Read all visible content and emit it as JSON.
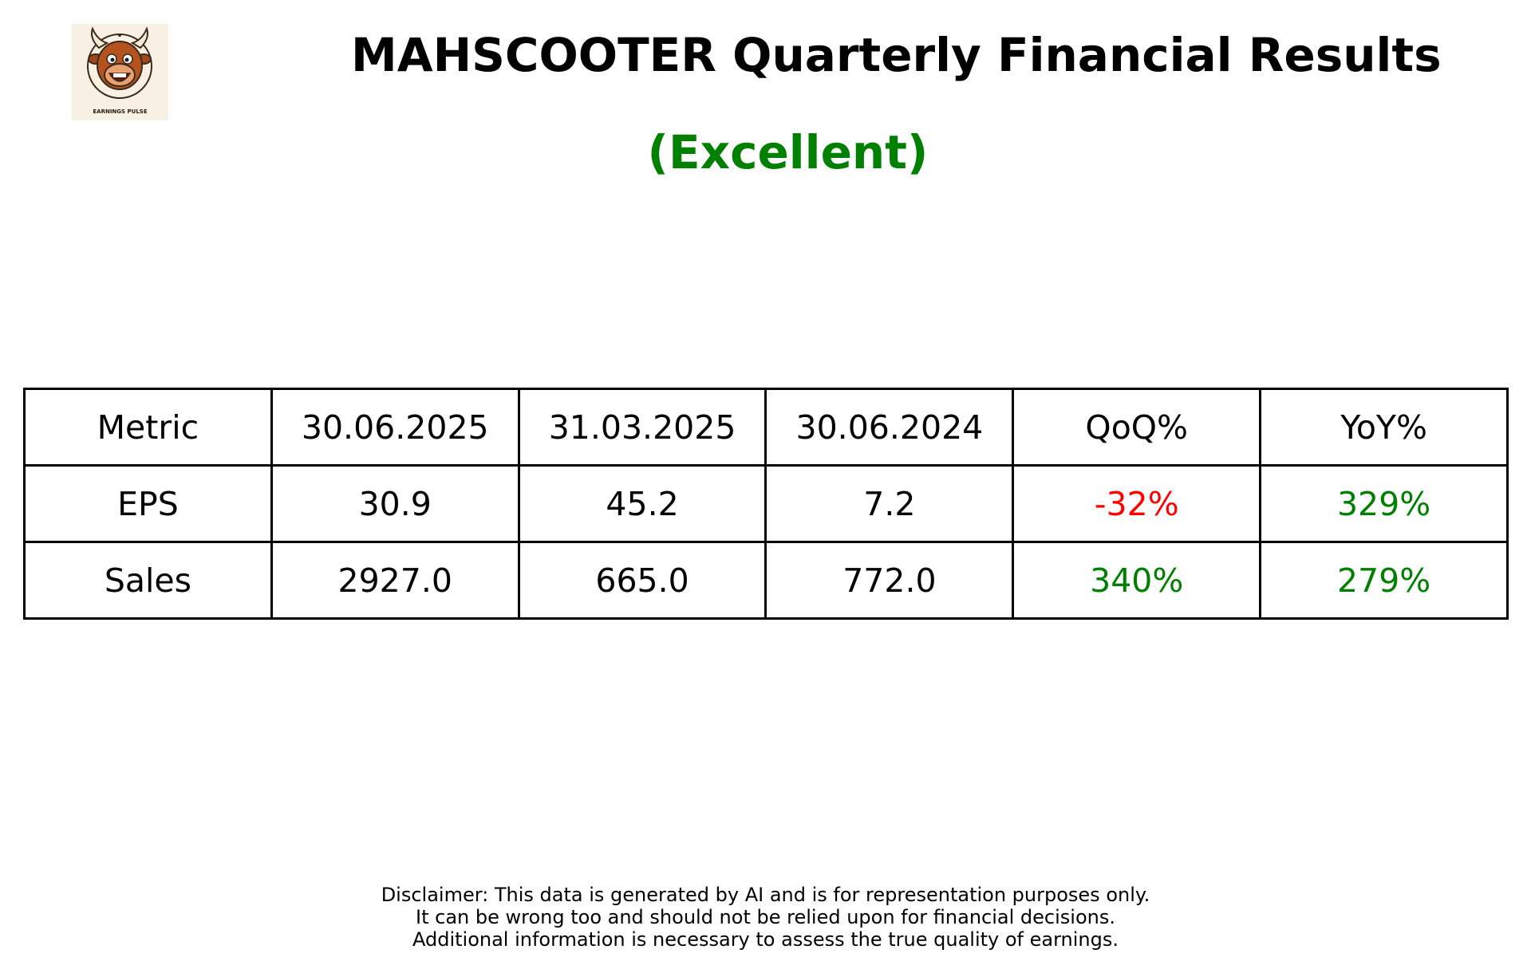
{
  "header": {
    "logo_icon": "bull-mascot-logo",
    "logo_text": "EARNINGS PULSE",
    "title": "MAHSCOOTER Quarterly Financial Results",
    "rating": "(Excellent)",
    "rating_color": "#008000"
  },
  "table": {
    "headers": [
      "Metric",
      "30.06.2025",
      "31.03.2025",
      "30.06.2024",
      "QoQ%",
      "YoY%"
    ],
    "rows": [
      {
        "metric": "EPS",
        "q1": "30.9",
        "q2": "45.2",
        "q3": "7.2",
        "qoq": "-32%",
        "qoq_color": "#ff0000",
        "yoy": "329%",
        "yoy_color": "#008000"
      },
      {
        "metric": "Sales",
        "q1": "2927.0",
        "q2": "665.0",
        "q3": "772.0",
        "qoq": "340%",
        "qoq_color": "#008000",
        "yoy": "279%",
        "yoy_color": "#008000"
      }
    ]
  },
  "disclaimer": {
    "lines": [
      "Disclaimer: This data is generated by AI and is for representation purposes only.",
      "It can be wrong too and should not be relied upon for financial decisions.",
      "Additional information is necessary to assess the true quality of earnings."
    ]
  }
}
